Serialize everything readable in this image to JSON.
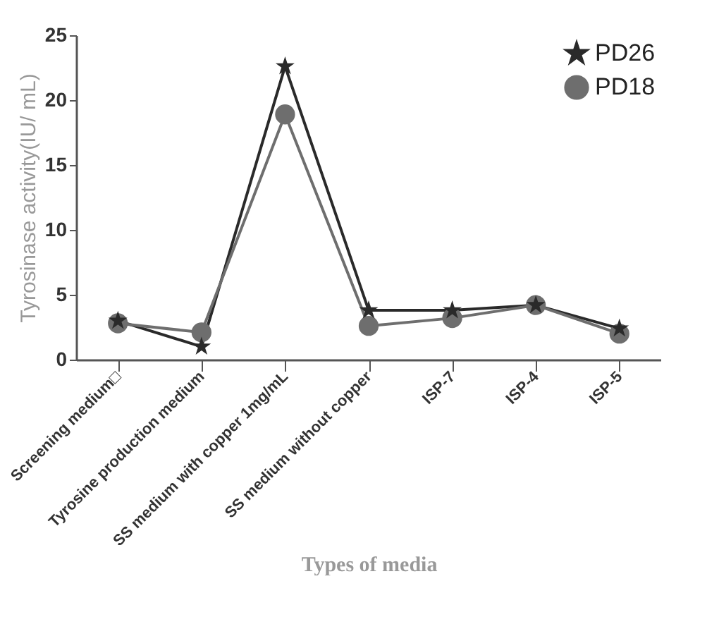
{
  "chart_data": {
    "type": "line",
    "xlabel": "Types of media",
    "ylabel": "Tyrosinase activity(IU/ mL)",
    "categories": [
      "Screening medium□",
      "Tyrosine production medium",
      "SS medium with copper 1mg/mL",
      "SS medium without copper",
      "ISP-7",
      "ISP-4",
      "ISP-5"
    ],
    "series": [
      {
        "name": "PD26",
        "color": "#2a2a2a",
        "marker": "star",
        "values": [
          3.0,
          1.0,
          22.6,
          3.8,
          3.8,
          4.2,
          2.4
        ]
      },
      {
        "name": "PD18",
        "color": "#6e6e6e",
        "marker": "circle",
        "values": [
          2.8,
          2.1,
          18.9,
          2.6,
          3.2,
          4.2,
          2.0
        ]
      }
    ],
    "ylim": [
      0,
      25
    ],
    "yticks": [
      0,
      5,
      10,
      15,
      20,
      25
    ],
    "grid": false,
    "legend": "top right"
  }
}
